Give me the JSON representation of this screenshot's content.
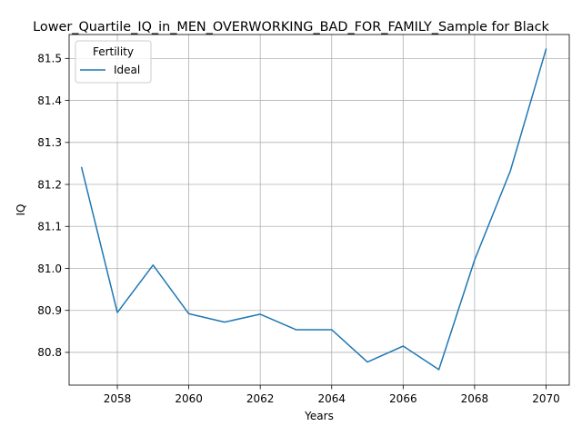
{
  "chart_data": {
    "type": "line",
    "title": "Lower_Quartile_IQ_in_MEN_OVERWORKING_BAD_FOR_FAMILY_Sample for Black",
    "xlabel": "Years",
    "ylabel": "IQ",
    "xlim": [
      2056.65,
      2070.65
    ],
    "ylim": [
      80.722,
      81.557
    ],
    "xticks": [
      2058,
      2060,
      2062,
      2064,
      2066,
      2068,
      2070
    ],
    "yticks": [
      80.8,
      80.9,
      81.0,
      81.1,
      81.2,
      81.3,
      81.4,
      81.5
    ],
    "grid": true,
    "legend": {
      "title": "Fertility",
      "placement": "upper-left"
    },
    "series": [
      {
        "name": "Ideal",
        "color": "#1f77b4",
        "x": [
          2057,
          2058,
          2059,
          2060,
          2061,
          2062,
          2063,
          2064,
          2065,
          2066,
          2067,
          2068,
          2069,
          2070
        ],
        "y": [
          81.24,
          80.895,
          81.008,
          80.892,
          80.872,
          80.891,
          80.854,
          80.854,
          80.777,
          80.815,
          80.759,
          81.02,
          81.232,
          81.522
        ]
      }
    ]
  }
}
